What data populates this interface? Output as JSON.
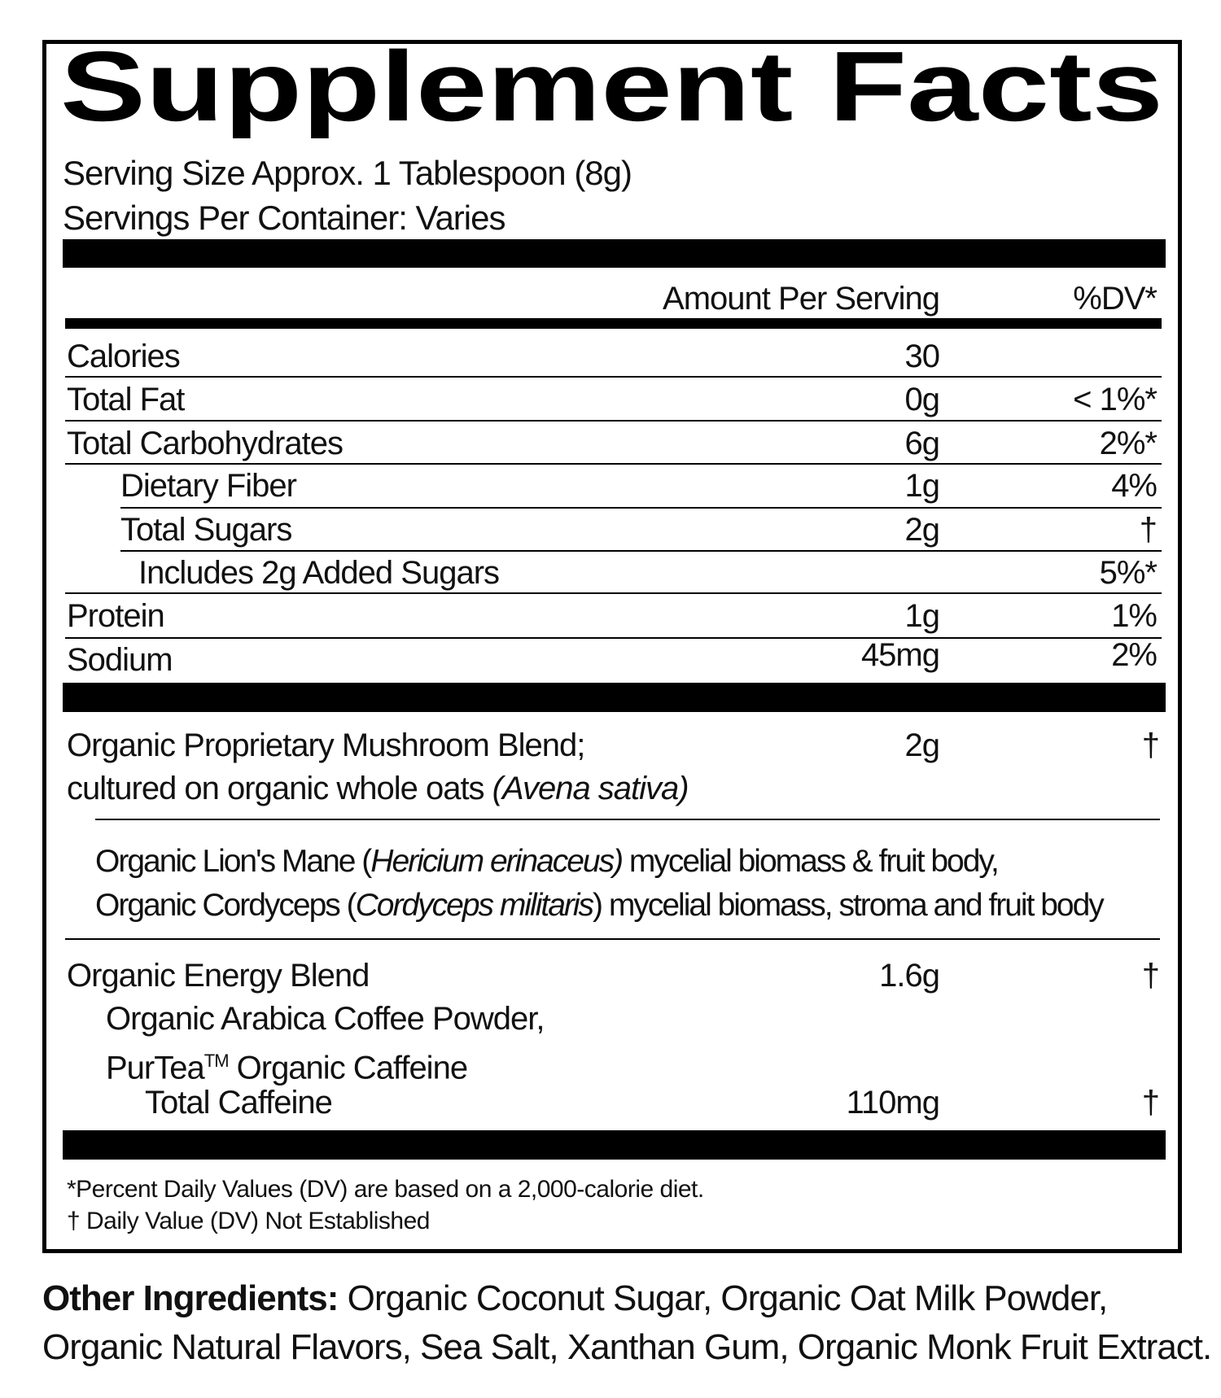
{
  "title": "Supplement Facts",
  "serving_size": "Serving Size Approx. 1 Tablespoon (8g)",
  "servings_per_container": "Servings Per Container: Varies",
  "header": {
    "amount": "Amount Per Serving",
    "dv": "%DV*"
  },
  "nutrients": [
    {
      "name": "Calories",
      "amount": "30"
    },
    {
      "name": "Total Fat",
      "amount": "0g",
      "dv": "< 1%*"
    },
    {
      "name": "Total Carbohydrates",
      "amount": "6g",
      "dv": "2%*"
    },
    {
      "name": "Dietary Fiber",
      "amount": "1g",
      "dv": "4%"
    },
    {
      "name": "Total Sugars",
      "amount": "2g",
      "dv": "†"
    },
    {
      "name": "Includes 2g Added Sugars",
      "dv": "5%*"
    },
    {
      "name": "Protein",
      "amount": "1g",
      "dv": "1%"
    },
    {
      "name": "Sodium",
      "amount": "45mg",
      "dv": "2%"
    }
  ],
  "mushroom_blend": {
    "name_lines": [
      "Organic Proprietary Mushroom Blend;",
      "cultured on organic whole oats "
    ],
    "name_italic": "(Avena sativa)",
    "amount": "2g",
    "dv": "†",
    "ingredients": [
      [
        "Organic Lion's Mane (",
        "Hericium erinaceus)",
        " mycelial biomass & fruit body,"
      ],
      [
        "Organic Cordyceps (",
        "Cordyceps militaris",
        ") mycelial biomass, stroma and fruit body"
      ]
    ]
  },
  "energy_blend": {
    "name": "Organic Energy Blend",
    "amount": "1.6g",
    "dv": "†",
    "ingredients": [
      "Organic Arabica Coffee Powder,"
    ],
    "purtea": {
      "brand": "PurTea",
      "mark": "TM",
      "rest": " Organic Caffeine"
    },
    "caffeine": {
      "name": "Total Caffeine",
      "amount": "110mg",
      "dv": "†"
    }
  },
  "footnotes": [
    "*Percent Daily Values (DV) are based on a 2,000-calorie diet.",
    "† Daily Value (DV) Not Established"
  ],
  "other_ingredients": {
    "label": "Other Ingredients:",
    "lines": [
      " Organic Coconut Sugar, Organic Oat Milk Powder,",
      "Organic Natural Flavors, Sea Salt, Xanthan Gum, Organic Monk Fruit Extract."
    ]
  }
}
